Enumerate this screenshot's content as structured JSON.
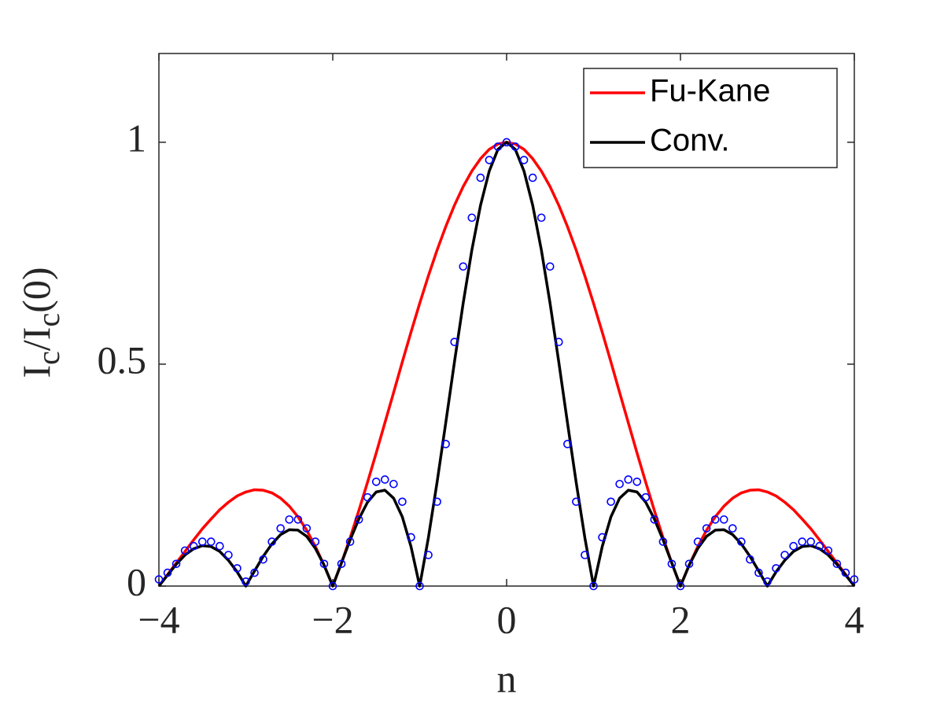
{
  "chart_data": {
    "type": "line",
    "xlabel": "n",
    "ylabel": [
      "I",
      "c",
      "/I",
      "c",
      "(0)"
    ],
    "x": [
      -4,
      -3.9,
      -3.8,
      -3.7,
      -3.6,
      -3.5,
      -3.4,
      -3.3,
      -3.2,
      -3.1,
      -3,
      -2.9,
      -2.8,
      -2.7,
      -2.6,
      -2.5,
      -2.4,
      -2.3,
      -2.2,
      -2.1,
      -2,
      -1.9,
      -1.8,
      -1.7,
      -1.6,
      -1.5,
      -1.4,
      -1.3,
      -1.2,
      -1.1,
      -1,
      -0.9,
      -0.8,
      -0.7,
      -0.6,
      -0.5,
      -0.4,
      -0.3,
      -0.2,
      -0.1,
      0,
      0.1,
      0.2,
      0.3,
      0.4,
      0.5,
      0.6,
      0.7,
      0.8,
      0.9,
      1,
      1.1,
      1.2,
      1.3,
      1.4,
      1.5,
      1.6,
      1.7,
      1.8,
      1.9,
      2,
      2.1,
      2.2,
      2.3,
      2.4,
      2.5,
      2.6,
      2.7,
      2.8,
      2.9,
      3,
      3.1,
      3.2,
      3.3,
      3.4,
      3.5,
      3.6,
      3.7,
      3.8,
      3.9,
      4
    ],
    "series": [
      {
        "name": "Fu-Kane",
        "color": "#ff0000",
        "style": "line",
        "values": [
          0,
          0.026,
          0.052,
          0.078,
          0.104,
          0.129,
          0.151,
          0.172,
          0.189,
          0.203,
          0.212,
          0.217,
          0.216,
          0.21,
          0.198,
          0.18,
          0.156,
          0.126,
          0.089,
          0.047,
          0,
          0.052,
          0.109,
          0.17,
          0.234,
          0.3,
          0.368,
          0.436,
          0.505,
          0.572,
          0.637,
          0.699,
          0.757,
          0.81,
          0.858,
          0.9,
          0.935,
          0.963,
          0.984,
          0.996,
          1,
          0.996,
          0.984,
          0.963,
          0.935,
          0.9,
          0.858,
          0.81,
          0.757,
          0.699,
          0.637,
          0.572,
          0.505,
          0.436,
          0.368,
          0.3,
          0.234,
          0.17,
          0.109,
          0.052,
          0,
          0.047,
          0.089,
          0.126,
          0.156,
          0.18,
          0.198,
          0.21,
          0.216,
          0.217,
          0.212,
          0.203,
          0.189,
          0.172,
          0.151,
          0.129,
          0.104,
          0.078,
          0.052,
          0.026,
          0
        ]
      },
      {
        "name": "Conv.",
        "color": "#000000",
        "style": "line",
        "values": [
          0,
          0.025,
          0.049,
          0.07,
          0.084,
          0.091,
          0.089,
          0.078,
          0.058,
          0.032,
          0,
          0.034,
          0.067,
          0.095,
          0.116,
          0.127,
          0.126,
          0.112,
          0.085,
          0.047,
          0,
          0.052,
          0.104,
          0.151,
          0.189,
          0.212,
          0.216,
          0.198,
          0.156,
          0.089,
          0,
          0.109,
          0.234,
          0.368,
          0.505,
          0.637,
          0.757,
          0.858,
          0.935,
          0.984,
          1,
          0.984,
          0.935,
          0.858,
          0.757,
          0.637,
          0.505,
          0.368,
          0.234,
          0.109,
          0,
          0.089,
          0.156,
          0.198,
          0.216,
          0.212,
          0.189,
          0.151,
          0.104,
          0.052,
          0,
          0.047,
          0.085,
          0.112,
          0.126,
          0.127,
          0.116,
          0.095,
          0.067,
          0.034,
          0,
          0.032,
          0.058,
          0.078,
          0.089,
          0.091,
          0.084,
          0.07,
          0.049,
          0.025,
          0
        ]
      },
      {
        "color": "#0000ff",
        "style": "marker",
        "values": [
          0.015,
          0.03,
          0.05,
          0.08,
          0.09,
          0.1,
          0.1,
          0.09,
          0.07,
          0.04,
          0.01,
          0.03,
          0.06,
          0.1,
          0.13,
          0.15,
          0.15,
          0.13,
          0.1,
          0.05,
          0,
          0.05,
          0.1,
          0.15,
          0.2,
          0.235,
          0.24,
          0.23,
          0.19,
          0.11,
          0,
          0.07,
          0.19,
          0.32,
          0.55,
          0.72,
          0.83,
          0.92,
          0.96,
          0.99,
          1,
          0.99,
          0.96,
          0.92,
          0.83,
          0.72,
          0.55,
          0.32,
          0.19,
          0.07,
          0,
          0.11,
          0.19,
          0.23,
          0.24,
          0.235,
          0.2,
          0.15,
          0.1,
          0.05,
          0,
          0.05,
          0.1,
          0.13,
          0.15,
          0.15,
          0.13,
          0.1,
          0.06,
          0.03,
          0.01,
          0.04,
          0.07,
          0.09,
          0.1,
          0.1,
          0.09,
          0.08,
          0.05,
          0.03,
          0.015
        ]
      }
    ],
    "xlim": [
      -4,
      4
    ],
    "xticks": [
      {
        "value": -4,
        "label": "−4"
      },
      {
        "value": -2,
        "label": "−2"
      },
      0,
      2,
      4
    ],
    "ylim": [
      0,
      1.2
    ],
    "yticks": [
      0,
      0.5,
      1
    ],
    "grid": false,
    "legend": "upper right"
  }
}
